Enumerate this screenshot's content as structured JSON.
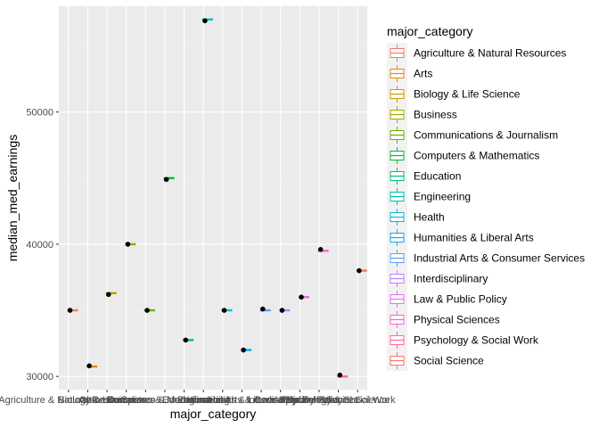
{
  "chart_data": {
    "type": "boxplot",
    "xlabel": "major_category",
    "ylabel": "median_med_earnings",
    "ylim": [
      29000,
      58000
    ],
    "yticks": [
      30000,
      40000,
      50000
    ],
    "ytick_labels": [
      "30000",
      "40000",
      "50000"
    ],
    "grid": true,
    "legend": {
      "title": "major_category",
      "position": "right"
    },
    "categories": [
      "Agriculture & Natural Resources",
      "Arts",
      "Biology & Life Science",
      "Business",
      "Communications & Journalism",
      "Computers & Mathematics",
      "Education",
      "Engineering",
      "Health",
      "Humanities & Liberal Arts",
      "Industrial Arts & Consumer Services",
      "Interdisciplinary",
      "Law & Public Policy",
      "Physical Sciences",
      "Psychology & Social Work",
      "Social Science"
    ],
    "colors": [
      "#F8766D",
      "#E58700",
      "#C99800",
      "#A3A500",
      "#6BB100",
      "#00BA38",
      "#00BF7D",
      "#00C0AF",
      "#00BCD8",
      "#00B0F6",
      "#619CFF",
      "#B983FF",
      "#E76BF3",
      "#FD61D1",
      "#FF67A4",
      "#F8766D"
    ],
    "box_values": [
      35000,
      30750,
      36300,
      40000,
      35000,
      45000,
      32750,
      57000,
      35000,
      32000,
      35000,
      35000,
      36000,
      39500,
      30000,
      38000
    ],
    "point_values": [
      35000,
      30800,
      36200,
      40000,
      35000,
      44900,
      32750,
      56900,
      35000,
      32000,
      35100,
      35000,
      36000,
      39600,
      30100,
      38000
    ]
  }
}
